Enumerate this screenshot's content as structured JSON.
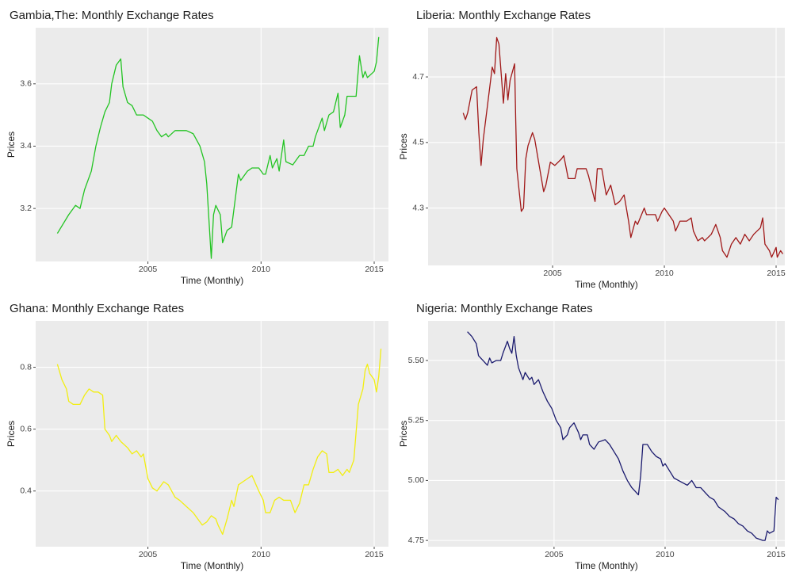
{
  "chart_data": [
    {
      "type": "line",
      "title": "Gambia,The: Monthly Exchange Rates",
      "x_label": "Time (Monthly)",
      "y_label": "Prices",
      "color": "#22c422",
      "grid": true,
      "xlim": [
        2000.04,
        2015.63
      ],
      "ylim": [
        3.03,
        3.78
      ],
      "xticks": [
        2005,
        2010,
        2015
      ],
      "yticks": [
        3.2,
        3.4,
        3.6
      ],
      "x": [
        2001.0,
        2001.5,
        2001.8,
        2002.0,
        2002.2,
        2002.5,
        2002.7,
        2002.9,
        2003.1,
        2003.3,
        2003.4,
        2003.6,
        2003.8,
        2003.9,
        2004.1,
        2004.3,
        2004.5,
        2004.8,
        2005.0,
        2005.2,
        2005.4,
        2005.6,
        2005.8,
        2005.9,
        2006.2,
        2006.7,
        2007.0,
        2007.3,
        2007.5,
        2007.6,
        2007.8,
        2007.9,
        2008.0,
        2008.2,
        2008.3,
        2008.5,
        2008.7,
        2009.0,
        2009.1,
        2009.4,
        2009.6,
        2009.9,
        2010.1,
        2010.2,
        2010.4,
        2010.5,
        2010.7,
        2010.8,
        2011.0,
        2011.1,
        2011.4,
        2011.7,
        2011.9,
        2012.1,
        2012.3,
        2012.4,
        2012.7,
        2012.8,
        2013.0,
        2013.2,
        2013.4,
        2013.5,
        2013.7,
        2013.8,
        2014.1,
        2014.2,
        2014.35,
        2014.5,
        2014.6,
        2014.7,
        2015.0,
        2015.1,
        2015.2
      ],
      "values": [
        3.12,
        3.18,
        3.21,
        3.2,
        3.26,
        3.32,
        3.4,
        3.46,
        3.51,
        3.54,
        3.6,
        3.66,
        3.68,
        3.59,
        3.54,
        3.53,
        3.5,
        3.5,
        3.49,
        3.48,
        3.45,
        3.43,
        3.44,
        3.43,
        3.45,
        3.45,
        3.44,
        3.4,
        3.35,
        3.28,
        3.04,
        3.18,
        3.21,
        3.18,
        3.09,
        3.13,
        3.14,
        3.31,
        3.29,
        3.32,
        3.33,
        3.33,
        3.31,
        3.31,
        3.37,
        3.33,
        3.36,
        3.32,
        3.42,
        3.35,
        3.34,
        3.37,
        3.37,
        3.4,
        3.4,
        3.43,
        3.49,
        3.45,
        3.5,
        3.51,
        3.57,
        3.46,
        3.5,
        3.56,
        3.56,
        3.56,
        3.69,
        3.62,
        3.64,
        3.62,
        3.64,
        3.67,
        3.75
      ]
    },
    {
      "type": "line",
      "title": "Liberia: Monthly Exchange Rates",
      "x_label": "Time (Monthly)",
      "y_label": "Prices",
      "color": "#a01818",
      "grid": true,
      "xlim": [
        1999.43,
        2015.39
      ],
      "ylim": [
        4.125,
        4.85
      ],
      "xticks": [
        2005,
        2010,
        2015
      ],
      "yticks": [
        4.3,
        4.5,
        4.7
      ],
      "x": [
        2001.0,
        2001.1,
        2001.2,
        2001.4,
        2001.6,
        2001.7,
        2001.8,
        2001.9,
        2002.1,
        2002.3,
        2002.4,
        2002.5,
        2002.6,
        2002.8,
        2002.9,
        2003.0,
        2003.1,
        2003.3,
        2003.35,
        2003.4,
        2003.6,
        2003.7,
        2003.8,
        2003.9,
        2004.1,
        2004.2,
        2004.4,
        2004.6,
        2004.7,
        2004.9,
        2005.1,
        2005.4,
        2005.5,
        2005.7,
        2006.0,
        2006.1,
        2006.5,
        2006.6,
        2006.9,
        2007.0,
        2007.2,
        2007.4,
        2007.6,
        2007.8,
        2008.0,
        2008.2,
        2008.4,
        2008.5,
        2008.7,
        2008.8,
        2009.1,
        2009.2,
        2009.6,
        2009.7,
        2009.9,
        2010.0,
        2010.1,
        2010.4,
        2010.5,
        2010.7,
        2011.0,
        2011.2,
        2011.3,
        2011.5,
        2011.7,
        2011.8,
        2012.1,
        2012.3,
        2012.5,
        2012.6,
        2012.8,
        2013.0,
        2013.2,
        2013.4,
        2013.6,
        2013.8,
        2014.0,
        2014.3,
        2014.4,
        2014.5,
        2014.7,
        2014.8,
        2015.0,
        2015.05,
        2015.2,
        2015.3
      ],
      "values": [
        4.59,
        4.57,
        4.59,
        4.66,
        4.67,
        4.53,
        4.43,
        4.51,
        4.62,
        4.73,
        4.71,
        4.82,
        4.8,
        4.62,
        4.71,
        4.63,
        4.69,
        4.74,
        4.57,
        4.42,
        4.29,
        4.3,
        4.45,
        4.49,
        4.53,
        4.51,
        4.43,
        4.35,
        4.37,
        4.44,
        4.43,
        4.45,
        4.46,
        4.39,
        4.39,
        4.42,
        4.42,
        4.4,
        4.32,
        4.42,
        4.42,
        4.34,
        4.37,
        4.31,
        4.32,
        4.34,
        4.26,
        4.21,
        4.26,
        4.25,
        4.3,
        4.28,
        4.28,
        4.26,
        4.29,
        4.3,
        4.29,
        4.26,
        4.23,
        4.26,
        4.26,
        4.27,
        4.23,
        4.2,
        4.21,
        4.2,
        4.22,
        4.25,
        4.21,
        4.17,
        4.15,
        4.19,
        4.21,
        4.19,
        4.22,
        4.2,
        4.22,
        4.24,
        4.27,
        4.19,
        4.17,
        4.15,
        4.18,
        4.15,
        4.17,
        4.16
      ]
    },
    {
      "type": "line",
      "title": "Ghana: Monthly Exchange Rates",
      "x_label": "Time (Monthly)",
      "y_label": "Prices",
      "color": "#f2ee10",
      "grid": true,
      "xlim": [
        2000.04,
        2015.63
      ],
      "ylim": [
        0.22,
        0.95
      ],
      "xticks": [
        2005,
        2010,
        2015
      ],
      "yticks": [
        0.4,
        0.6,
        0.8
      ],
      "x": [
        2001.0,
        2001.2,
        2001.4,
        2001.5,
        2001.7,
        2002.0,
        2002.2,
        2002.4,
        2002.6,
        2002.8,
        2003.0,
        2003.1,
        2003.3,
        2003.4,
        2003.6,
        2003.8,
        2004.1,
        2004.3,
        2004.5,
        2004.7,
        2004.8,
        2005.0,
        2005.2,
        2005.4,
        2005.6,
        2005.7,
        2005.9,
        2006.2,
        2006.4,
        2006.7,
        2007.0,
        2007.2,
        2007.4,
        2007.6,
        2007.8,
        2008.0,
        2008.1,
        2008.3,
        2008.5,
        2008.7,
        2008.8,
        2009.0,
        2009.2,
        2009.4,
        2009.6,
        2009.9,
        2010.1,
        2010.2,
        2010.4,
        2010.6,
        2010.8,
        2011.0,
        2011.3,
        2011.5,
        2011.7,
        2011.9,
        2012.1,
        2012.3,
        2012.5,
        2012.7,
        2012.9,
        2013.0,
        2013.2,
        2013.4,
        2013.6,
        2013.8,
        2013.9,
        2014.1,
        2014.2,
        2014.3,
        2014.5,
        2014.6,
        2014.7,
        2014.8,
        2015.0,
        2015.1,
        2015.2,
        2015.3
      ],
      "values": [
        0.81,
        0.76,
        0.73,
        0.69,
        0.68,
        0.68,
        0.71,
        0.73,
        0.72,
        0.72,
        0.71,
        0.6,
        0.58,
        0.56,
        0.58,
        0.56,
        0.54,
        0.52,
        0.53,
        0.51,
        0.52,
        0.44,
        0.41,
        0.4,
        0.42,
        0.43,
        0.42,
        0.38,
        0.37,
        0.35,
        0.33,
        0.31,
        0.29,
        0.3,
        0.32,
        0.31,
        0.29,
        0.26,
        0.31,
        0.37,
        0.35,
        0.42,
        0.43,
        0.44,
        0.45,
        0.4,
        0.37,
        0.33,
        0.33,
        0.37,
        0.38,
        0.37,
        0.37,
        0.33,
        0.36,
        0.42,
        0.42,
        0.47,
        0.51,
        0.53,
        0.52,
        0.46,
        0.46,
        0.47,
        0.45,
        0.47,
        0.46,
        0.5,
        0.59,
        0.68,
        0.73,
        0.79,
        0.81,
        0.78,
        0.76,
        0.72,
        0.77,
        0.86
      ]
    },
    {
      "type": "line",
      "title": "Nigeria: Monthly Exchange Rates",
      "x_label": "Time (Monthly)",
      "y_label": "Prices",
      "color": "#1a1a6e",
      "grid": true,
      "xlim": [
        1999.33,
        2015.39
      ],
      "ylim": [
        4.724,
        5.665
      ],
      "xticks": [
        2005,
        2010,
        2015
      ],
      "yticks": [
        4.75,
        {
          "value": 5,
          "label": "5.00"
        },
        5.25,
        {
          "value": 5.5,
          "label": "5.50"
        }
      ],
      "x": [
        2001.1,
        2001.3,
        2001.5,
        2001.6,
        2001.8,
        2002.0,
        2002.1,
        2002.2,
        2002.4,
        2002.6,
        2002.7,
        2002.9,
        2003.0,
        2003.1,
        2003.2,
        2003.3,
        2003.4,
        2003.6,
        2003.7,
        2003.9,
        2004.0,
        2004.1,
        2004.3,
        2004.5,
        2004.7,
        2004.9,
        2005.1,
        2005.3,
        2005.4,
        2005.6,
        2005.7,
        2005.9,
        2006.1,
        2006.2,
        2006.3,
        2006.5,
        2006.6,
        2006.8,
        2007.0,
        2007.3,
        2007.5,
        2007.7,
        2007.9,
        2008.1,
        2008.3,
        2008.5,
        2008.8,
        2008.9,
        2009.0,
        2009.2,
        2009.4,
        2009.6,
        2009.8,
        2009.9,
        2010.0,
        2010.2,
        2010.4,
        2010.6,
        2010.8,
        2011.0,
        2011.2,
        2011.4,
        2011.6,
        2011.8,
        2012.0,
        2012.2,
        2012.4,
        2012.7,
        2012.9,
        2013.1,
        2013.3,
        2013.5,
        2013.7,
        2013.9,
        2014.1,
        2014.4,
        2014.5,
        2014.6,
        2014.7,
        2014.9,
        2015.0,
        2015.1
      ],
      "values": [
        5.62,
        5.6,
        5.57,
        5.52,
        5.5,
        5.48,
        5.51,
        5.49,
        5.5,
        5.5,
        5.53,
        5.58,
        5.55,
        5.53,
        5.6,
        5.52,
        5.47,
        5.42,
        5.45,
        5.42,
        5.43,
        5.4,
        5.42,
        5.37,
        5.33,
        5.3,
        5.25,
        5.22,
        5.17,
        5.19,
        5.22,
        5.24,
        5.2,
        5.17,
        5.19,
        5.19,
        5.15,
        5.13,
        5.16,
        5.17,
        5.15,
        5.12,
        5.09,
        5.04,
        5.0,
        4.97,
        4.94,
        5.02,
        5.15,
        5.15,
        5.12,
        5.1,
        5.09,
        5.06,
        5.07,
        5.04,
        5.01,
        5.0,
        4.99,
        4.98,
        5.0,
        4.97,
        4.97,
        4.95,
        4.93,
        4.92,
        4.89,
        4.87,
        4.85,
        4.84,
        4.82,
        4.81,
        4.79,
        4.78,
        4.76,
        4.75,
        4.75,
        4.79,
        4.78,
        4.79,
        4.93,
        4.92
      ]
    }
  ]
}
